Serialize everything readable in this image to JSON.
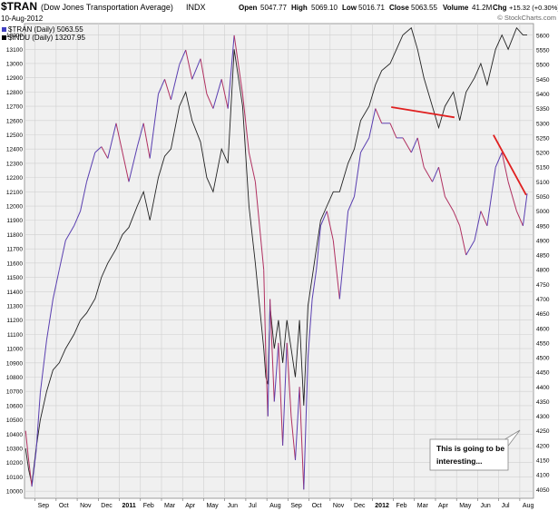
{
  "header": {
    "symbol": "$TRAN",
    "name": "(Dow Jones Transportation Average)",
    "exchange": "INDX",
    "date": "10-Aug-2012",
    "open_label": "Open",
    "open": "5047.77",
    "high_label": "High",
    "high": "5069.10",
    "low_label": "Low",
    "low": "5016.71",
    "close_label": "Close",
    "close": "5063.55",
    "volume_label": "Volume",
    "volume": "41.2M",
    "chg_label": "Chg",
    "chg": "+15.32 (+0.30%)",
    "watermark": "© StockCharts.com"
  },
  "legend": [
    {
      "label": "$TRAN (Daily) 5063.55",
      "color": "#4040c0"
    },
    {
      "label": "$INDU (Daily) 13207.95",
      "color": "#000000"
    }
  ],
  "annotation": {
    "line1": "This is going to be",
    "line2": "interesting..."
  },
  "colors": {
    "tran": "#5a3fb0",
    "tran_down": "#b03060",
    "indu": "#222222",
    "trendline": "#e02020",
    "grid": "#d0d0d0",
    "plot_bg": "#f0f0f0"
  },
  "chart_data": {
    "type": "line",
    "grid": true,
    "x_ticks": [
      "Sep",
      "Oct",
      "Nov",
      "Dec",
      "2011",
      "Feb",
      "Mar",
      "Apr",
      "May",
      "Jun",
      "Jul",
      "Aug",
      "Sep",
      "Oct",
      "Nov",
      "Dec",
      "2012",
      "Feb",
      "Mar",
      "Apr",
      "May",
      "Jun",
      "Jul",
      "Aug"
    ],
    "x_tick_index": [
      0.15,
      1.15,
      2.15,
      3.15,
      4.15,
      5.15,
      6.15,
      7.15,
      8.15,
      9.15,
      10.15,
      11.15,
      12.15,
      13.15,
      14.15,
      15.15,
      16.15,
      17.15,
      18.15,
      19.15,
      20.15,
      21.15,
      22.15,
      23.15
    ],
    "x_range": [
      -0.35,
      23.8
    ],
    "left_axis": {
      "name": "$INDU",
      "range": [
        9950,
        13280
      ],
      "ticks": [
        10000,
        10100,
        10200,
        10300,
        10400,
        10500,
        10600,
        10700,
        10800,
        10900,
        11000,
        11100,
        11200,
        11300,
        11400,
        11500,
        11600,
        11700,
        11800,
        11900,
        12000,
        12100,
        12200,
        12300,
        12400,
        12500,
        12600,
        12700,
        12800,
        12900,
        13000,
        13100,
        13200
      ]
    },
    "right_axis": {
      "name": "$TRAN",
      "range": [
        4020,
        5640
      ],
      "ticks": [
        4050,
        4100,
        4150,
        4200,
        4250,
        4300,
        4350,
        4400,
        4450,
        4500,
        4550,
        4600,
        4650,
        4700,
        4750,
        4800,
        4850,
        4900,
        4950,
        5000,
        5050,
        5100,
        5150,
        5200,
        5250,
        5300,
        5350,
        5400,
        5450,
        5500,
        5550,
        5600
      ]
    },
    "series": [
      {
        "name": "$TRAN (Daily) 5063.55",
        "axis": "right",
        "x": [
          -0.3,
          -0.15,
          0,
          0.2,
          0.4,
          0.7,
          1,
          1.3,
          1.6,
          2,
          2.3,
          2.6,
          3,
          3.3,
          3.6,
          4,
          4.3,
          4.6,
          5,
          5.3,
          5.6,
          6,
          6.3,
          6.6,
          7,
          7.3,
          7.6,
          8,
          8.3,
          8.6,
          9,
          9.3,
          9.6,
          10,
          10.3,
          10.6,
          11,
          11.1,
          11.2,
          11.3,
          11.5,
          11.7,
          11.9,
          12.1,
          12.3,
          12.5,
          12.7,
          12.9,
          13.1,
          13.3,
          13.5,
          13.7,
          14,
          14.3,
          14.6,
          15,
          15.3,
          15.6,
          16,
          16.3,
          16.6,
          17,
          17.3,
          17.6,
          18,
          18.3,
          18.6,
          19,
          19.3,
          19.6,
          20,
          20.3,
          20.6,
          21,
          21.3,
          21.6,
          22,
          22.3,
          22.6,
          23,
          23.3,
          23.5
        ],
        "y": [
          4250,
          4150,
          4060,
          4180,
          4380,
          4560,
          4700,
          4800,
          4900,
          4950,
          5000,
          5100,
          5200,
          5220,
          5180,
          5300,
          5200,
          5100,
          5220,
          5300,
          5180,
          5400,
          5450,
          5380,
          5500,
          5550,
          5450,
          5520,
          5400,
          5350,
          5450,
          5350,
          5600,
          5400,
          5200,
          5100,
          4800,
          4500,
          4300,
          4700,
          4350,
          4550,
          4200,
          4550,
          4300,
          4150,
          4400,
          4050,
          4500,
          4700,
          4800,
          4950,
          5000,
          4900,
          4700,
          5000,
          5050,
          5200,
          5250,
          5350,
          5300,
          5300,
          5250,
          5250,
          5200,
          5250,
          5150,
          5100,
          5150,
          5050,
          5000,
          4950,
          4850,
          4900,
          5000,
          4950,
          5150,
          5200,
          5100,
          5000,
          4950,
          5060
        ]
      },
      {
        "name": "$INDU (Daily) 13207.95",
        "axis": "left",
        "x": [
          -0.3,
          -0.15,
          0,
          0.2,
          0.4,
          0.7,
          1,
          1.3,
          1.6,
          2,
          2.3,
          2.6,
          3,
          3.3,
          3.6,
          4,
          4.3,
          4.6,
          5,
          5.3,
          5.6,
          6,
          6.3,
          6.6,
          7,
          7.3,
          7.6,
          8,
          8.3,
          8.6,
          9,
          9.3,
          9.6,
          10,
          10.3,
          10.6,
          11,
          11.1,
          11.2,
          11.3,
          11.5,
          11.7,
          11.9,
          12.1,
          12.3,
          12.5,
          12.7,
          12.9,
          13.1,
          13.3,
          13.5,
          13.7,
          14,
          14.3,
          14.6,
          15,
          15.3,
          15.6,
          16,
          16.3,
          16.6,
          17,
          17.3,
          17.6,
          18,
          18.3,
          18.6,
          19,
          19.3,
          19.6,
          20,
          20.3,
          20.6,
          21,
          21.3,
          21.6,
          22,
          22.3,
          22.6,
          23,
          23.3,
          23.5
        ],
        "y": [
          10300,
          10150,
          10050,
          10300,
          10500,
          10700,
          10850,
          10900,
          11000,
          11100,
          11200,
          11250,
          11350,
          11500,
          11600,
          11700,
          11800,
          11850,
          12000,
          12100,
          11900,
          12200,
          12350,
          12400,
          12700,
          12800,
          12600,
          12450,
          12200,
          12100,
          12400,
          12300,
          13100,
          12700,
          12000,
          11600,
          11000,
          10800,
          10750,
          11300,
          11000,
          11200,
          10900,
          11200,
          11000,
          10800,
          11200,
          10600,
          11300,
          11500,
          11700,
          11900,
          12000,
          12100,
          12100,
          12300,
          12400,
          12600,
          12700,
          12850,
          12950,
          13000,
          13100,
          13200,
          13250,
          13100,
          12900,
          12700,
          12550,
          12700,
          12800,
          12600,
          12800,
          12900,
          13000,
          12850,
          13100,
          13200,
          13100,
          13250,
          13200,
          13200
        ]
      }
    ],
    "trendlines": [
      {
        "axis": "right",
        "x": [
          17.05,
          20.05
        ],
        "y": [
          5355,
          5320
        ]
      },
      {
        "axis": "right",
        "x": [
          21.9,
          23.45
        ],
        "y": [
          5260,
          5055
        ]
      }
    ]
  }
}
